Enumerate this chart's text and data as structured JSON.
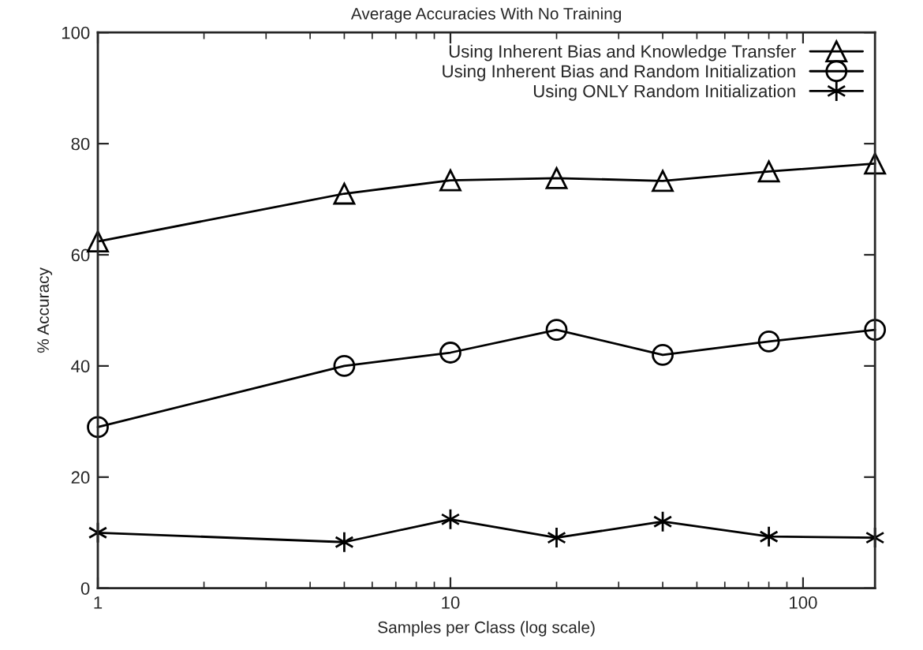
{
  "chart_data": {
    "type": "line",
    "title": "Average Accuracies With No Training",
    "xlabel": "Samples per Class (log scale)",
    "ylabel": "% Accuracy",
    "x": [
      1,
      5,
      10,
      20,
      40,
      80,
      160
    ],
    "series": [
      {
        "name": "Using Inherent Bias and Knowledge Transfer",
        "color": "#000000",
        "marker": "triangle",
        "values": [
          62.4,
          71.0,
          73.4,
          73.8,
          73.3,
          75.0,
          76.4
        ]
      },
      {
        "name": "Using Inherent Bias and Random Initialization",
        "color": "#000000",
        "marker": "circle",
        "values": [
          29.0,
          40.0,
          42.4,
          46.5,
          42.0,
          44.4,
          46.5
        ]
      },
      {
        "name": "Using ONLY Random Initialization",
        "color": "#000000",
        "marker": "cross",
        "values": [
          10.0,
          8.3,
          12.4,
          9.1,
          12.0,
          9.3,
          9.1
        ]
      }
    ],
    "log": "x",
    "xlim": [
      1,
      160
    ],
    "xticks": [
      1,
      10,
      100
    ],
    "ylim": [
      0,
      100
    ],
    "yticks": [
      0,
      20,
      40,
      60,
      80,
      100
    ],
    "grid": false,
    "legend": "top right",
    "line_style": "solid"
  }
}
